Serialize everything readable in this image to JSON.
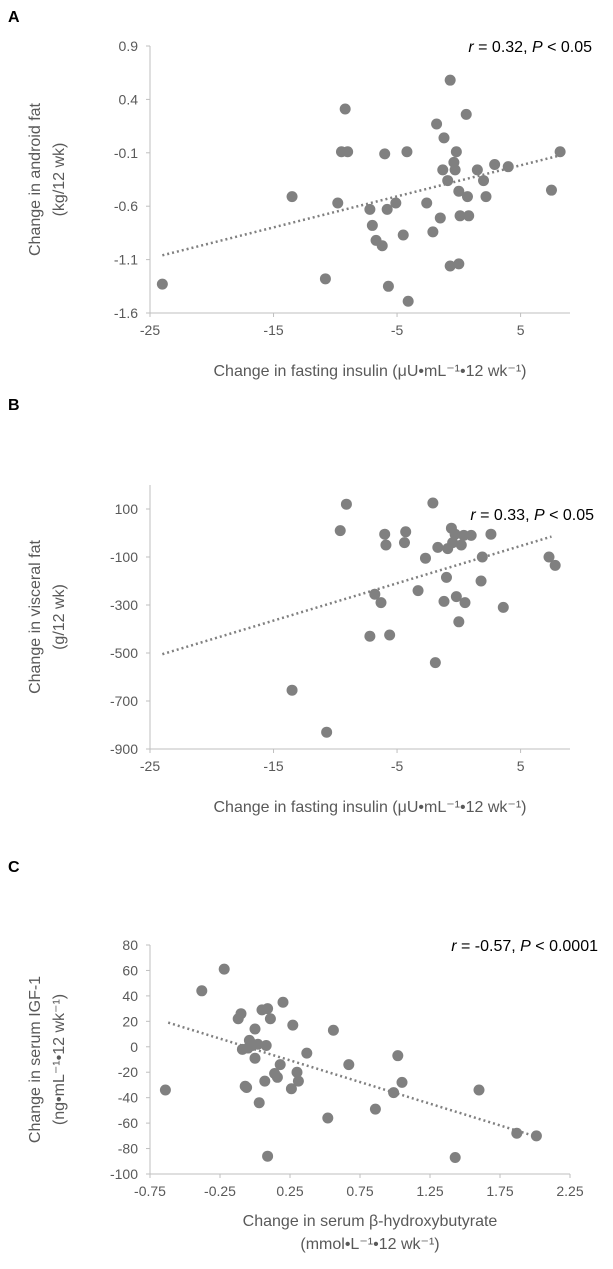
{
  "chart_data": [
    {
      "type": "scatter",
      "panel_label": "A",
      "stat": {
        "r_label": "r",
        "r_value": " = 0.32, ",
        "p_label": "P",
        "p_value": " < 0.05"
      },
      "xlabel": "Change in fasting insulin (μU•mL⁻¹•12 wk⁻¹)",
      "ylabel_lines": [
        "Change in android fat",
        "(kg/12 wk)"
      ],
      "xlim": [
        -25,
        9
      ],
      "ylim": [
        -1.6,
        0.9
      ],
      "xticks": [
        -25,
        -15,
        -5,
        5
      ],
      "yticks": [
        0.9,
        0.4,
        -0.1,
        -0.6,
        -1.1,
        -1.6
      ],
      "xtick_labels": [
        "-25",
        "-15",
        "-5",
        "5"
      ],
      "ytick_labels": [
        "0.9",
        "0.4",
        "-0.1",
        "-0.6",
        "-1.1",
        "-1.6"
      ],
      "trendline": [
        [
          -24,
          -1.06
        ],
        [
          8,
          -0.13
        ]
      ],
      "points": [
        [
          -24,
          -1.33
        ],
        [
          -13.5,
          -0.51
        ],
        [
          -10.8,
          -1.28
        ],
        [
          -9.8,
          -0.57
        ],
        [
          -9.5,
          -0.09
        ],
        [
          -9.2,
          0.31
        ],
        [
          -9,
          -0.09
        ],
        [
          -7.2,
          -0.63
        ],
        [
          -7,
          -0.78
        ],
        [
          -6.7,
          -0.92
        ],
        [
          -6.2,
          -0.97
        ],
        [
          -6,
          -0.11
        ],
        [
          -5.8,
          -0.63
        ],
        [
          -5.7,
          -1.35
        ],
        [
          -5.1,
          -0.57
        ],
        [
          -4.5,
          -0.87
        ],
        [
          -4.2,
          -0.09
        ],
        [
          -4.1,
          -1.49
        ],
        [
          -2.6,
          -0.57
        ],
        [
          -2.1,
          -0.84
        ],
        [
          -1.8,
          0.17
        ],
        [
          -1.5,
          -0.71
        ],
        [
          -1.3,
          -0.26
        ],
        [
          -1.2,
          0.04
        ],
        [
          -0.9,
          -0.36
        ],
        [
          -0.7,
          0.58
        ],
        [
          -0.7,
          -1.16
        ],
        [
          -0.4,
          -0.19
        ],
        [
          -0.3,
          -0.26
        ],
        [
          -0.2,
          -0.09
        ],
        [
          0,
          -1.14
        ],
        [
          0,
          -0.46
        ],
        [
          0.1,
          -0.69
        ],
        [
          0.6,
          0.26
        ],
        [
          0.7,
          -0.51
        ],
        [
          0.8,
          -0.69
        ],
        [
          1.5,
          -0.26
        ],
        [
          2,
          -0.36
        ],
        [
          2.2,
          -0.51
        ],
        [
          2.9,
          -0.21
        ],
        [
          4,
          -0.23
        ],
        [
          7.5,
          -0.45
        ],
        [
          8.2,
          -0.09
        ]
      ]
    },
    {
      "type": "scatter",
      "panel_label": "B",
      "stat": {
        "r_label": "r",
        "r_value": " = 0.33, ",
        "p_label": "P",
        "p_value": " < 0.05"
      },
      "xlabel": "Change in fasting insulin (μU•mL⁻¹•12 wk⁻¹)",
      "ylabel_lines": [
        "Change in visceral fat",
        "(g/12 wk)"
      ],
      "xlim": [
        -25,
        9
      ],
      "ylim": [
        -900,
        200
      ],
      "xticks": [
        -25,
        -15,
        -5,
        5
      ],
      "yticks": [
        100,
        -100,
        -300,
        -500,
        -700,
        -900
      ],
      "xtick_labels": [
        "-25",
        "-15",
        "-5",
        "5"
      ],
      "ytick_labels": [
        "100",
        "-100",
        "-300",
        "-500",
        "-700",
        "-900"
      ],
      "trendline": [
        [
          -24,
          -505
        ],
        [
          7.5,
          -15
        ]
      ],
      "points": [
        [
          -13.5,
          -655
        ],
        [
          -10.7,
          -830
        ],
        [
          -9.6,
          10
        ],
        [
          -9.1,
          120
        ],
        [
          -7.2,
          -430
        ],
        [
          -6.8,
          -255
        ],
        [
          -6.3,
          -290
        ],
        [
          -6,
          -5
        ],
        [
          -5.9,
          -50
        ],
        [
          -5.6,
          -425
        ],
        [
          -4.4,
          -40
        ],
        [
          -4.3,
          5
        ],
        [
          -3.3,
          -240
        ],
        [
          -2.7,
          -105
        ],
        [
          -2.1,
          125
        ],
        [
          -1.9,
          -540
        ],
        [
          -1.7,
          -60
        ],
        [
          -1.2,
          -285
        ],
        [
          -1,
          -185
        ],
        [
          -0.9,
          -65
        ],
        [
          -0.6,
          20
        ],
        [
          -0.5,
          -40
        ],
        [
          -0.3,
          -5
        ],
        [
          -0.2,
          -265
        ],
        [
          0,
          -370
        ],
        [
          0.2,
          -50
        ],
        [
          0.4,
          -10
        ],
        [
          0.5,
          -290
        ],
        [
          1,
          -10
        ],
        [
          1.8,
          -200
        ],
        [
          1.9,
          -100
        ],
        [
          2.6,
          -5
        ],
        [
          3.6,
          -310
        ],
        [
          7.3,
          -100
        ],
        [
          7.8,
          -135
        ]
      ]
    },
    {
      "type": "scatter",
      "panel_label": "C",
      "stat": {
        "r_label": "r",
        "r_value": " = -0.57, ",
        "p_label": "P",
        "p_value": " < 0.0001"
      },
      "xlabel_lines": [
        "Change in serum β-hydroxybutyrate",
        "(mmol•L⁻¹•12 wk⁻¹)"
      ],
      "ylabel_lines": [
        "Change in serum IGF-1",
        "(ng•mL⁻¹•12 wk⁻¹)"
      ],
      "xlim": [
        -0.75,
        2.25
      ],
      "ylim": [
        -100,
        80
      ],
      "xticks": [
        -0.75,
        -0.25,
        0.25,
        0.75,
        1.25,
        1.75,
        2.25
      ],
      "yticks": [
        80,
        60,
        40,
        20,
        0,
        -20,
        -40,
        -60,
        -80,
        -100
      ],
      "xtick_labels": [
        "-0.75",
        "-0.25",
        "0.25",
        "0.75",
        "1.25",
        "1.75",
        "2.25"
      ],
      "ytick_labels": [
        "80",
        "60",
        "40",
        "20",
        "0",
        "-20",
        "-40",
        "-60",
        "-80",
        "-100"
      ],
      "trendline": [
        [
          -0.62,
          19
        ],
        [
          2.02,
          -71
        ]
      ],
      "points": [
        [
          -0.64,
          -34
        ],
        [
          -0.38,
          44
        ],
        [
          -0.22,
          61
        ],
        [
          -0.12,
          22
        ],
        [
          -0.1,
          26
        ],
        [
          -0.09,
          -2
        ],
        [
          -0.07,
          -31
        ],
        [
          -0.06,
          -32
        ],
        [
          -0.05,
          -1
        ],
        [
          -0.04,
          5
        ],
        [
          -0.03,
          3
        ],
        [
          -0.02,
          1
        ],
        [
          0,
          14
        ],
        [
          0,
          -9
        ],
        [
          0.02,
          2
        ],
        [
          0.03,
          -44
        ],
        [
          0.05,
          29
        ],
        [
          0.07,
          -27
        ],
        [
          0.08,
          1
        ],
        [
          0.09,
          30
        ],
        [
          0.09,
          -86
        ],
        [
          0.11,
          22
        ],
        [
          0.14,
          -21
        ],
        [
          0.16,
          -24
        ],
        [
          0.18,
          -14
        ],
        [
          0.2,
          35
        ],
        [
          0.26,
          -33
        ],
        [
          0.27,
          17
        ],
        [
          0.3,
          -20
        ],
        [
          0.31,
          -27
        ],
        [
          0.37,
          -5
        ],
        [
          0.52,
          -56
        ],
        [
          0.56,
          13
        ],
        [
          0.67,
          -14
        ],
        [
          0.86,
          -49
        ],
        [
          0.99,
          -36
        ],
        [
          1.02,
          -7
        ],
        [
          1.05,
          -28
        ],
        [
          1.43,
          -87
        ],
        [
          1.6,
          -34
        ],
        [
          1.87,
          -68
        ],
        [
          2.01,
          -70
        ]
      ]
    }
  ]
}
